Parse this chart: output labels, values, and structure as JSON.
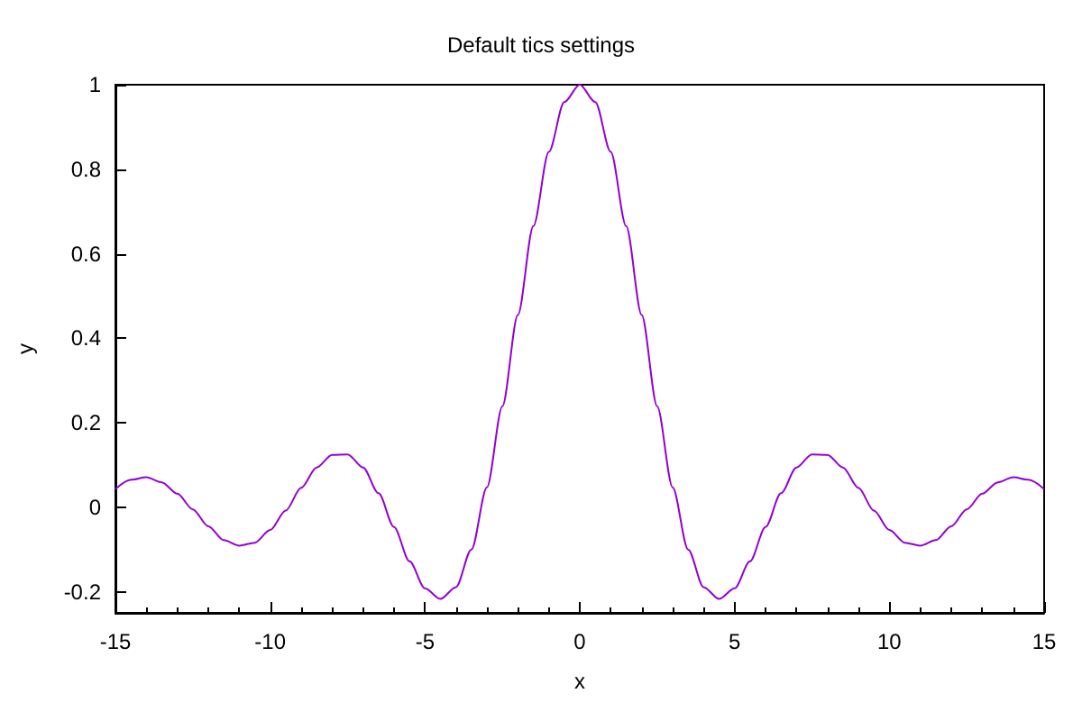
{
  "chart_data": {
    "type": "line",
    "title": "Default tics settings",
    "xlabel": "x",
    "ylabel": "y",
    "x": [
      -15,
      -14.5,
      -14,
      -13.5,
      -13,
      -12.5,
      -12,
      -11.5,
      -11,
      -10.5,
      -10,
      -9.5,
      -9,
      -8.5,
      -8,
      -7.5,
      -7,
      -6.5,
      -6,
      -5.5,
      -5,
      -4.5,
      -4,
      -3.5,
      -3,
      -2.5,
      -2,
      -1.5,
      -1,
      -0.5,
      0,
      0.5,
      1,
      1.5,
      2,
      2.5,
      3,
      3.5,
      4,
      4.5,
      5,
      5.5,
      6,
      6.5,
      7,
      7.5,
      8,
      8.5,
      9,
      9.5,
      10,
      10.5,
      11,
      11.5,
      12,
      12.5,
      13,
      13.5,
      14,
      14.5,
      15
    ],
    "series": [
      {
        "color": "#9400d3",
        "values": [
          0.043,
          0.065,
          0.071,
          0.059,
          0.032,
          -0.005,
          -0.045,
          -0.078,
          -0.091,
          -0.084,
          -0.054,
          -0.008,
          0.046,
          0.094,
          0.124,
          0.125,
          0.094,
          0.033,
          -0.047,
          -0.128,
          -0.192,
          -0.217,
          -0.189,
          -0.1,
          0.047,
          0.239,
          0.455,
          0.665,
          0.841,
          0.959,
          1,
          0.959,
          0.841,
          0.665,
          0.455,
          0.239,
          0.047,
          -0.1,
          -0.189,
          -0.217,
          -0.192,
          -0.128,
          -0.047,
          0.033,
          0.094,
          0.125,
          0.124,
          0.094,
          0.046,
          -0.008,
          -0.054,
          -0.084,
          -0.091,
          -0.078,
          -0.045,
          -0.005,
          0.032,
          0.059,
          0.071,
          0.065,
          0.043
        ]
      }
    ],
    "xlim": [
      -15,
      15
    ],
    "xticks": [
      -15,
      -10,
      -5,
      0,
      5,
      10,
      15
    ],
    "ylim": [
      -0.25,
      1
    ],
    "yticks": [
      -0.2,
      0,
      0.2,
      0.4,
      0.6,
      0.8,
      1
    ],
    "marker": "none",
    "line_style": "solid"
  }
}
